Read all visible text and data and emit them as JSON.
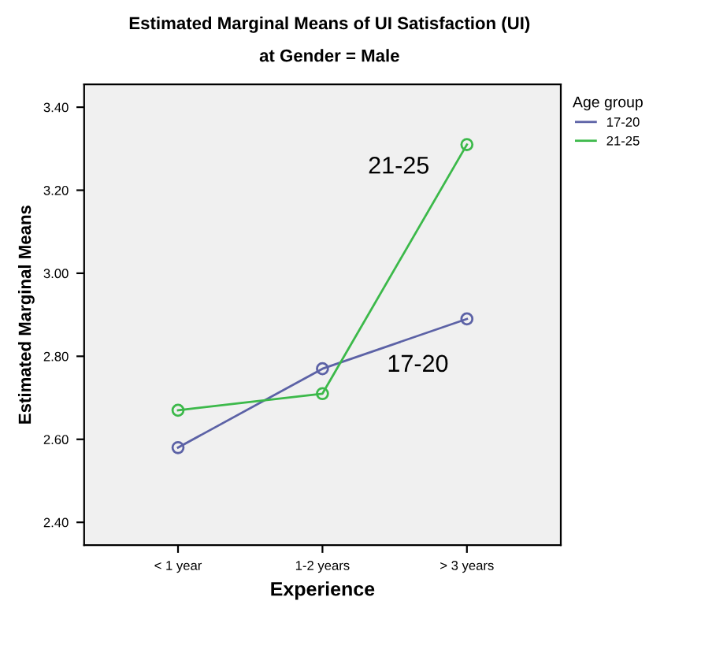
{
  "chart_data": {
    "type": "line",
    "title": "Estimated Marginal Means of UI Satisfaction (UI)",
    "subtitle": "at Gender = Male",
    "xlabel": "Experience",
    "ylabel": "Estimated Marginal Means",
    "legend_title": "Age group",
    "categories": [
      "< 1 year",
      "1-2 years",
      "> 3 years"
    ],
    "series": [
      {
        "name": "17-20",
        "color": "#5c62a6",
        "values": [
          2.58,
          2.77,
          2.89
        ]
      },
      {
        "name": "21-25",
        "color": "#3cb94a",
        "values": [
          2.67,
          2.71,
          3.31
        ]
      }
    ],
    "ylim": [
      2.345,
      3.455
    ],
    "yticks": [
      {
        "value": 2.4,
        "label": "2.40"
      },
      {
        "value": 2.6,
        "label": "2.60"
      },
      {
        "value": 2.8,
        "label": "2.80"
      },
      {
        "value": 3.0,
        "label": "3.00"
      },
      {
        "value": 3.2,
        "label": "3.20"
      },
      {
        "value": 3.4,
        "label": "3.40"
      }
    ],
    "marker": "circle",
    "legend": "top right",
    "grid": false,
    "annotations": [
      "21-25",
      "17-20"
    ]
  }
}
